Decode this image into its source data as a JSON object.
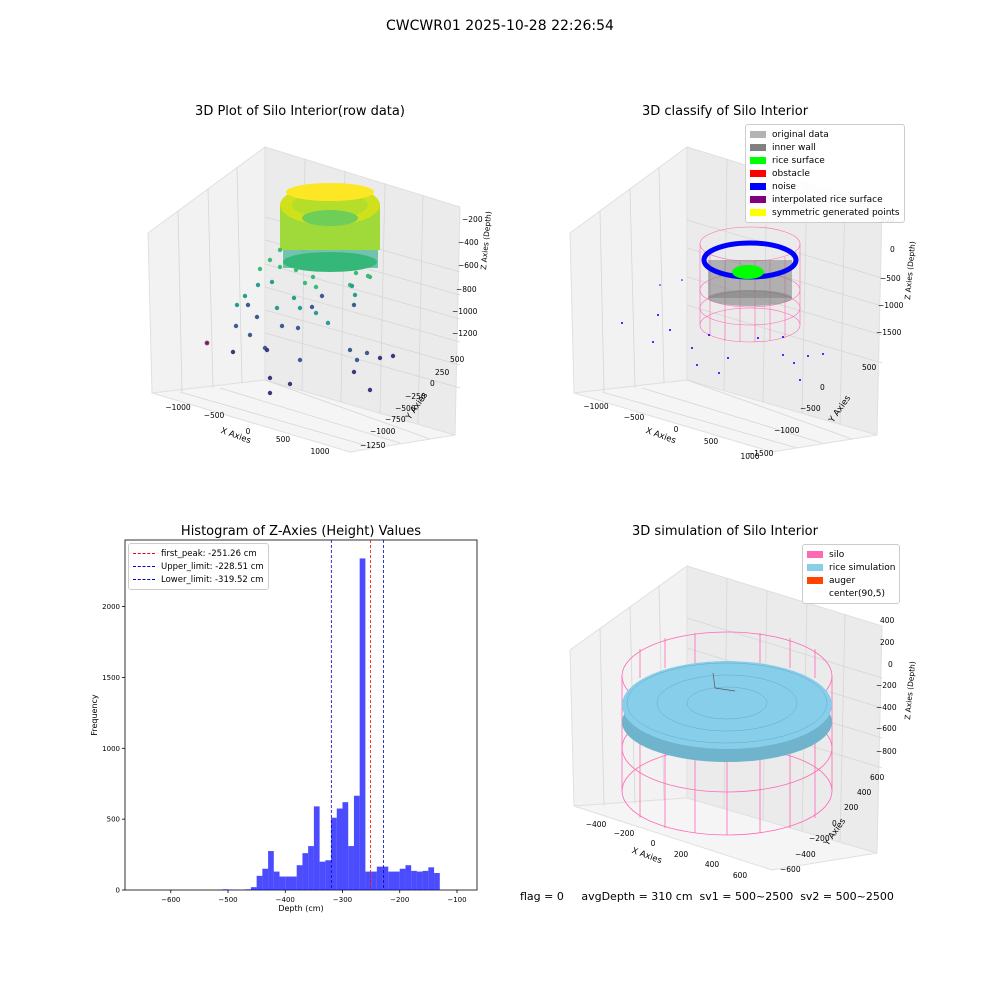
{
  "suptitle": "CWCWR01 2025-10-28 22:26:54",
  "panels": {
    "raw3d": {
      "title": "3D Plot of Silo Interior(row data)",
      "xlabel": "X Axies",
      "ylabel": "Y Axies",
      "zlabel": "Z Axies (Depth)",
      "xticks": [
        "−1000",
        "−500",
        "0",
        "500",
        "1000"
      ],
      "yticks": [
        "500",
        "250",
        "0",
        "−250",
        "−500",
        "−750",
        "−1000",
        "−1250"
      ],
      "zticks": [
        "−200",
        "−400",
        "−600",
        "−800",
        "−1000",
        "−1200"
      ]
    },
    "classify3d": {
      "title": "3D classify of Silo Interior",
      "xlabel": "X Axies",
      "ylabel": "Y Axies",
      "zlabel": "Z Axies (Depth)",
      "xticks": [
        "−1000",
        "−500",
        "0",
        "500",
        "1000"
      ],
      "yticks": [
        "500",
        "0",
        "−500",
        "−1000",
        "−1500"
      ],
      "zticks": [
        "500",
        "0",
        "−500",
        "−1000",
        "−1500"
      ],
      "legend": [
        {
          "label": "original data",
          "color": "#b3b3b3"
        },
        {
          "label": "inner wall",
          "color": "#808080"
        },
        {
          "label": "rice surface",
          "color": "#00ff00"
        },
        {
          "label": "obstacle",
          "color": "#ff0000"
        },
        {
          "label": "noise",
          "color": "#0000ff"
        },
        {
          "label": "interpolated rice surface",
          "color": "#800080"
        },
        {
          "label": "symmetric generated points",
          "color": "#ffff00"
        }
      ]
    },
    "simulation3d": {
      "title": "3D simulation of Silo Interior",
      "xlabel": "X Axies",
      "ylabel": "Y Axies",
      "zlabel": "Z Axies (Depth)",
      "xticks": [
        "−400",
        "−200",
        "0",
        "200",
        "400",
        "600"
      ],
      "yticks": [
        "600",
        "400",
        "200",
        "0",
        "−200",
        "−400",
        "−600"
      ],
      "zticks": [
        "400",
        "200",
        "0",
        "−200",
        "−400",
        "−600",
        "−800"
      ],
      "legend": [
        {
          "label": "silo",
          "color": "#ff69b4"
        },
        {
          "label": "rice simulation",
          "color": "#87ceeb"
        },
        {
          "label": "auger",
          "color": "#ff4500"
        },
        {
          "label": "center(90,5)",
          "color": ""
        }
      ]
    }
  },
  "chart_data": {
    "type": "bar",
    "title": "Histogram of Z-Axies (Height) Values",
    "xlabel": "Depth (cm)",
    "ylabel": "Frequency",
    "xlim": [
      -680,
      -65
    ],
    "ylim": [
      0,
      2470
    ],
    "bin_width": 10,
    "bin_starts": [
      -510,
      -500,
      -470,
      -460,
      -450,
      -440,
      -430,
      -420,
      -410,
      -400,
      -390,
      -380,
      -370,
      -360,
      -350,
      -340,
      -330,
      -320,
      -310,
      -300,
      -290,
      -280,
      -270,
      -260,
      -250,
      -240,
      -230,
      -220,
      -210,
      -200,
      -190,
      -180,
      -170,
      -160,
      -150,
      -140,
      -130,
      -120,
      -110
    ],
    "values": [
      5,
      3,
      5,
      20,
      100,
      150,
      275,
      130,
      95,
      95,
      95,
      175,
      260,
      310,
      590,
      200,
      210,
      510,
      575,
      620,
      310,
      665,
      2340,
      130,
      130,
      165,
      165,
      130,
      130,
      150,
      175,
      135,
      130,
      135,
      160,
      120,
      0,
      0,
      0
    ],
    "bar_color": "#0000ff",
    "bar_alpha": 0.7,
    "xticks": [
      -600,
      -500,
      -400,
      -300,
      -200,
      -100
    ],
    "yticks": [
      0,
      500,
      1000,
      1500,
      2000
    ],
    "vlines": [
      {
        "label": "first_peak: -251.26 cm",
        "x": -251.26,
        "color": "#ff0000"
      },
      {
        "label": "Upper_limit: -228.51 cm",
        "x": -228.51,
        "color": "#0000cc"
      },
      {
        "label": "Lower_limit: -319.52 cm",
        "x": -319.52,
        "color": "#0000cc"
      }
    ],
    "legend_position": "top-left",
    "grid": false
  },
  "footer": {
    "text": "flag = 0     avgDepth = 310 cm  sv1 = 500~2500  sv2 = 500~2500"
  }
}
